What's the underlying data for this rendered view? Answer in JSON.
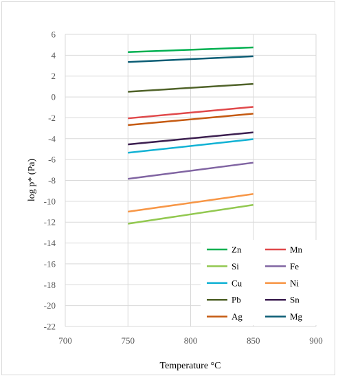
{
  "chart_data": {
    "type": "line",
    "title": "",
    "xlabel": "Temperature °C",
    "ylabel": "log p* (Pa)",
    "xlim": [
      700,
      900
    ],
    "ylim": [
      -22,
      6
    ],
    "x_ticks": [
      700,
      750,
      800,
      850,
      900
    ],
    "y_ticks": [
      6,
      4,
      2,
      0,
      -2,
      -4,
      -6,
      -8,
      -10,
      -12,
      -14,
      -16,
      -18,
      -20,
      -22
    ],
    "grid": true,
    "legend_position": "bottom-right",
    "series": [
      {
        "name": "Zn",
        "color": "#00b050",
        "x": [
          750,
          850
        ],
        "y": [
          4.3,
          4.75
        ]
      },
      {
        "name": "Mn",
        "color": "#e0484a",
        "x": [
          750,
          850
        ],
        "y": [
          -2.05,
          -0.95
        ]
      },
      {
        "name": "Si",
        "color": "#92c850",
        "x": [
          750,
          850
        ],
        "y": [
          -12.15,
          -10.35
        ]
      },
      {
        "name": "Fe",
        "color": "#8064a2",
        "x": [
          750,
          850
        ],
        "y": [
          -7.85,
          -6.3
        ]
      },
      {
        "name": "Cu",
        "color": "#12b2d4",
        "x": [
          750,
          850
        ],
        "y": [
          -5.35,
          -4.05
        ]
      },
      {
        "name": "Ni",
        "color": "#f79646",
        "x": [
          750,
          850
        ],
        "y": [
          -11.0,
          -9.3
        ]
      },
      {
        "name": "Pb",
        "color": "#4f6228",
        "x": [
          750,
          850
        ],
        "y": [
          0.5,
          1.25
        ]
      },
      {
        "name": "Sn",
        "color": "#3c1f50",
        "x": [
          750,
          850
        ],
        "y": [
          -4.55,
          -3.4
        ]
      },
      {
        "name": "Ag",
        "color": "#c55a11",
        "x": [
          750,
          850
        ],
        "y": [
          -2.7,
          -1.6
        ]
      },
      {
        "name": "Mg",
        "color": "#0a5c74",
        "x": [
          750,
          850
        ],
        "y": [
          3.35,
          3.9
        ]
      }
    ]
  }
}
